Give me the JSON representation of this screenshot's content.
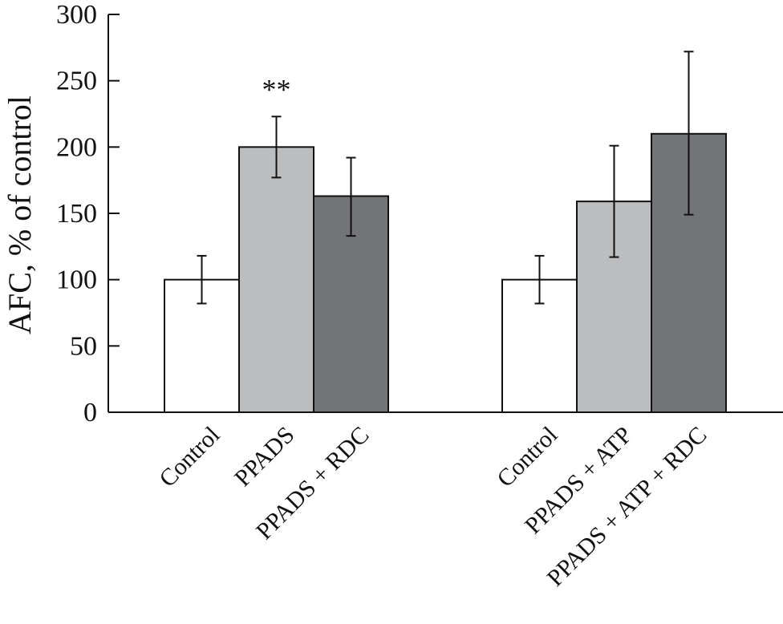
{
  "chart_data": {
    "type": "bar",
    "ylabel": "AFC, % of control",
    "xlabel": "",
    "ylim": [
      0,
      300
    ],
    "yticks": [
      0,
      50,
      100,
      150,
      200,
      250,
      300
    ],
    "grid": false,
    "groups": [
      {
        "bars": [
          {
            "label": "Control",
            "value": 100,
            "err_low": 82,
            "err_high": 118,
            "fill": "white",
            "annotation": ""
          },
          {
            "label": "PPADS",
            "value": 200,
            "err_low": 177,
            "err_high": 223,
            "fill": "light-gray",
            "annotation": "**"
          },
          {
            "label": "PPADS + RDC",
            "value": 163,
            "err_low": 133,
            "err_high": 192,
            "fill": "dark-gray",
            "annotation": ""
          }
        ]
      },
      {
        "bars": [
          {
            "label": "Control",
            "value": 100,
            "err_low": 82,
            "err_high": 118,
            "fill": "white",
            "annotation": ""
          },
          {
            "label": "PPADS + ATP",
            "value": 159,
            "err_low": 117,
            "err_high": 201,
            "fill": "light-gray",
            "annotation": ""
          },
          {
            "label": "PPADS + ATP + RDC",
            "value": 210,
            "err_low": 149,
            "err_high": 272,
            "fill": "dark-gray",
            "annotation": ""
          }
        ]
      }
    ]
  },
  "colors": {
    "white": "#ffffff",
    "light-gray": "#bcbdbf",
    "dark-gray": "#737478",
    "stroke": "#111111"
  }
}
